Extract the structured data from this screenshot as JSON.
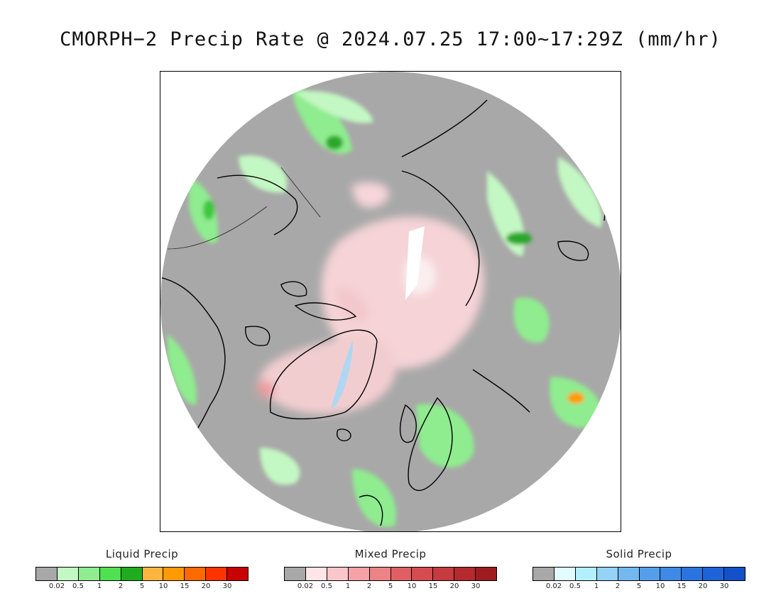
{
  "title": "CMORPH−2 Precip Rate @ 2024.07.25 17:00~17:29Z (mm/hr)",
  "map": {
    "projection": "north-polar-stereographic",
    "background_color": "#a8a8a8",
    "coast_color": "#000000"
  },
  "legends": [
    {
      "id": "liquid",
      "title": "Liquid Precip",
      "colors": [
        "#a8a8a8",
        "#c3f7c3",
        "#8fec8f",
        "#50e050",
        "#1fad1f",
        "#fbb53f",
        "#ff9a00",
        "#ff6a00",
        "#ff3300",
        "#c80000"
      ],
      "ticks": [
        "0.02",
        "0.5",
        "1",
        "2",
        "5",
        "10",
        "15",
        "20",
        "30"
      ]
    },
    {
      "id": "mixed",
      "title": "Mixed Precip",
      "colors": [
        "#a8a8a8",
        "#ffe5e8",
        "#fbc6cb",
        "#f4a2a7",
        "#ec8386",
        "#e05f63",
        "#d44c50",
        "#c53b3f",
        "#b52a2e",
        "#9e1c1f"
      ],
      "ticks": [
        "0.02",
        "0.5",
        "1",
        "2",
        "5",
        "10",
        "15",
        "20",
        "30"
      ]
    },
    {
      "id": "solid",
      "title": "Solid Precip",
      "colors": [
        "#a8a8a8",
        "#e1fbff",
        "#b4f0fb",
        "#92d3f7",
        "#73b9f0",
        "#559fea",
        "#3e8ae6",
        "#2b74e0",
        "#1f63d8",
        "#1450c8"
      ],
      "ticks": [
        "0.02",
        "0.5",
        "1",
        "2",
        "5",
        "10",
        "15",
        "20",
        "30"
      ]
    }
  ]
}
